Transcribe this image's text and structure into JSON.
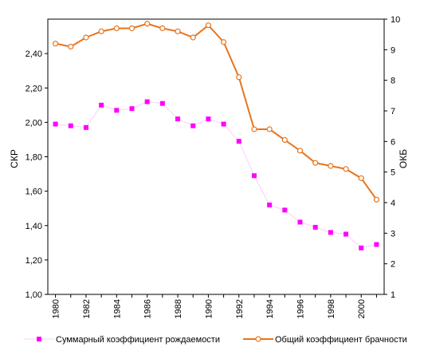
{
  "chart_data": {
    "type": "line",
    "ylabel": "СКР",
    "y2label": "ОКБ",
    "ylim": [
      1.0,
      2.6
    ],
    "y2lim": [
      1,
      10
    ],
    "xlim": [
      1979.5,
      2001.5
    ],
    "grid": false,
    "legend_position": "bottom",
    "x_tick_labels": [
      "1980",
      "1982",
      "1984",
      "1986",
      "1988",
      "1990",
      "1992",
      "1994",
      "1996",
      "1998",
      "2000"
    ],
    "y_tick_labels": [
      "1,00",
      "1,20",
      "1,40",
      "1,60",
      "1,80",
      "2,00",
      "2,20",
      "2,40"
    ],
    "y2_tick_labels": [
      "1",
      "2",
      "3",
      "4",
      "5",
      "6",
      "7",
      "8",
      "9",
      "10"
    ],
    "series": [
      {
        "name": "Суммарный коэффициент рождаемости",
        "axis": "left",
        "line_color": "#ffccff",
        "marker_color": "#ff00ff",
        "marker": "square",
        "x": [
          1980,
          1981,
          1982,
          1983,
          1984,
          1985,
          1986,
          1987,
          1988,
          1989,
          1990,
          1991,
          1992,
          1993,
          1994,
          1995,
          1996,
          1997,
          1998,
          1999,
          2000,
          2001
        ],
        "values": [
          1.99,
          1.98,
          1.97,
          2.1,
          2.07,
          2.08,
          2.12,
          2.11,
          2.02,
          1.98,
          2.02,
          1.99,
          1.89,
          1.69,
          1.52,
          1.49,
          1.42,
          1.39,
          1.36,
          1.35,
          1.27,
          1.29
        ]
      },
      {
        "name": "Общий коэффициент брачности",
        "axis": "right",
        "line_color": "#e8741c",
        "marker_color": "#e8741c",
        "marker": "circle",
        "x": [
          1980,
          1981,
          1982,
          1983,
          1984,
          1985,
          1986,
          1987,
          1988,
          1989,
          1990,
          1991,
          1992,
          1993,
          1994,
          1995,
          1996,
          1997,
          1998,
          1999,
          2000,
          2001
        ],
        "values": [
          9.2,
          9.1,
          9.4,
          9.6,
          9.7,
          9.7,
          9.85,
          9.7,
          9.6,
          9.4,
          9.8,
          9.25,
          8.1,
          6.4,
          6.4,
          6.05,
          5.7,
          5.3,
          5.2,
          5.1,
          4.8,
          4.1
        ]
      }
    ]
  }
}
